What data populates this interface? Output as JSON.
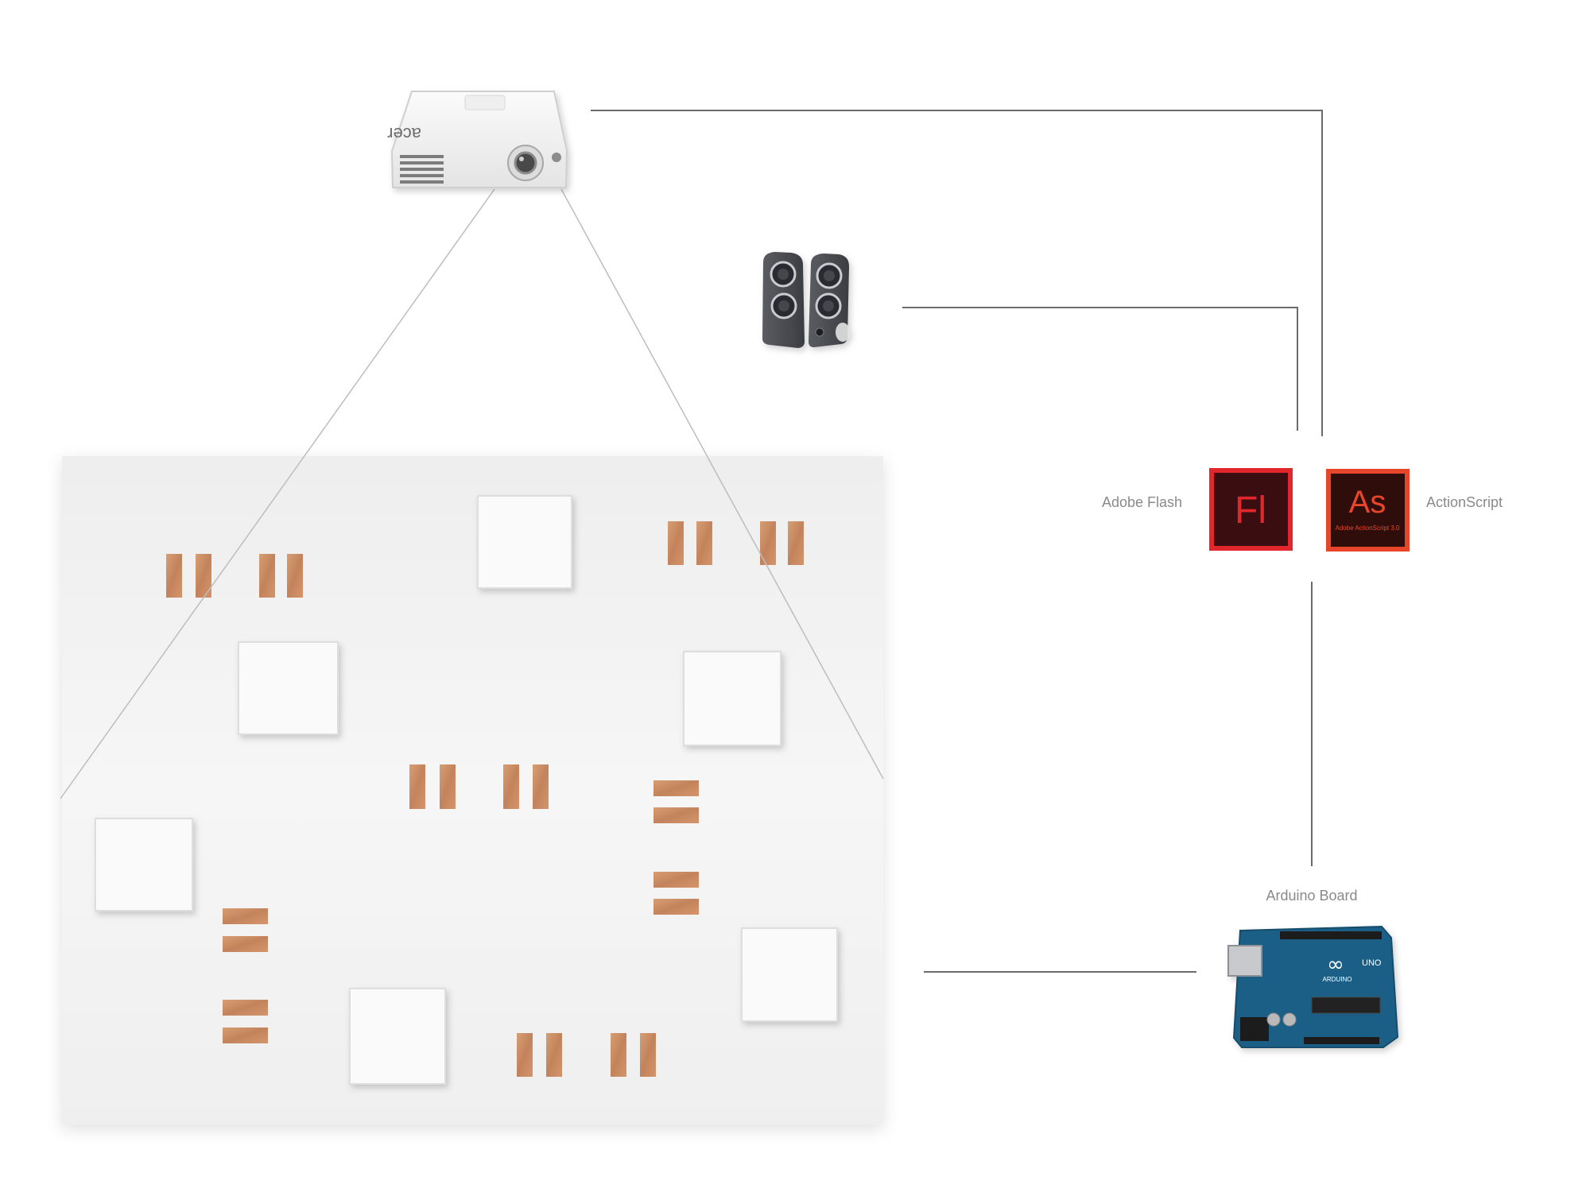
{
  "labels": {
    "adobe_flash": "Adobe Flash",
    "actionscript": "ActionScript",
    "arduino_board": "Arduino Board"
  },
  "icons": {
    "flash": {
      "glyph": "Fl",
      "bg": "#3a0e11",
      "accent": "#e1262c"
    },
    "actionscript": {
      "glyph": "As",
      "subtitle": "Adobe ActionScript 3.0",
      "bg": "#2f0d0b",
      "accent": "#e8462b"
    }
  },
  "projector": {
    "brand": "acer"
  },
  "arduino": {
    "brand": "ARDUINO",
    "model": "UNO"
  },
  "colors": {
    "tape": "#c8865a",
    "board": "#f3f3f3",
    "line": "#6b6b6b",
    "arduino": "#1d5f86"
  }
}
